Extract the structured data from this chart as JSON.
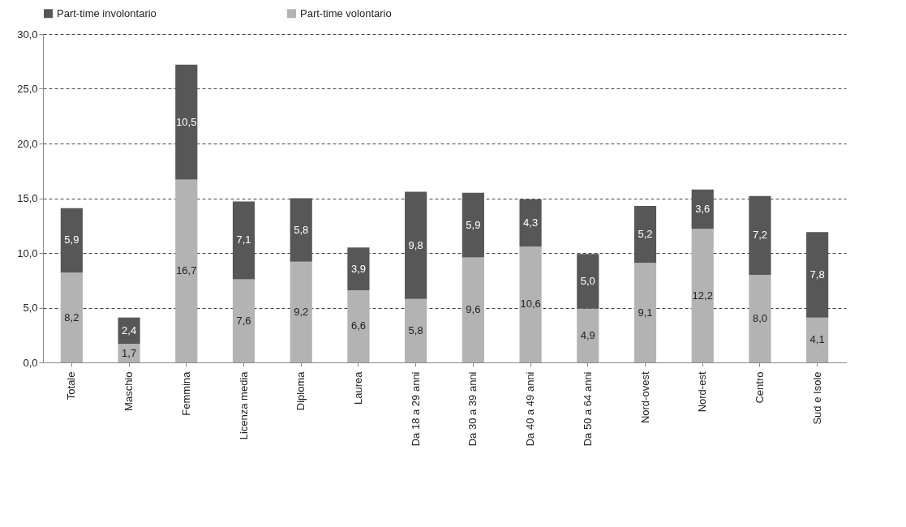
{
  "chart_data": {
    "type": "bar",
    "stacked": true,
    "categories": [
      "Totale",
      "Maschio",
      "Femmina",
      "Licenza media",
      "Diploma",
      "Laurea",
      "Da 18 a 29 anni",
      "Da 30 a 39 anni",
      "Da 40 a 49 anni",
      "Da 50 a 64 anni",
      "Nord-ovest",
      "Nord-est",
      "Centro",
      "Sud e Isole"
    ],
    "series": [
      {
        "name": "Part-time volontario",
        "color": "#b3b3b3",
        "values": [
          8.2,
          1.7,
          16.7,
          7.6,
          9.2,
          6.6,
          5.8,
          9.6,
          10.6,
          4.9,
          9.1,
          12.2,
          8.0,
          4.1
        ],
        "value_labels": [
          "8,2",
          "1,7",
          "16,7",
          "7,6",
          "9,2",
          "6,6",
          "5,8",
          "9,6",
          "10,6",
          "4,9",
          "9,1",
          "12,2",
          "8,0",
          "4,1"
        ]
      },
      {
        "name": "Part-time involontario",
        "color": "#575757",
        "values": [
          5.9,
          2.4,
          10.5,
          7.1,
          5.8,
          3.9,
          9.8,
          5.9,
          4.3,
          5.0,
          5.2,
          3.6,
          7.2,
          7.8
        ],
        "value_labels": [
          "5,9",
          "2,4",
          "10,5",
          "7,1",
          "5,8",
          "3,9",
          "9,8",
          "5,9",
          "4,3",
          "5,0",
          "5,2",
          "3,6",
          "7,2",
          "7,8"
        ]
      }
    ],
    "ylim": [
      0,
      30
    ],
    "yticks": [
      {
        "value": 0,
        "label": "0,0"
      },
      {
        "value": 5,
        "label": "5,0"
      },
      {
        "value": 10,
        "label": "10,0"
      },
      {
        "value": 15,
        "label": "15,0"
      },
      {
        "value": 20,
        "label": "20,0"
      },
      {
        "value": 25,
        "label": "25,0"
      },
      {
        "value": 30,
        "label": "30,0"
      }
    ],
    "grid": "y",
    "legend": "top"
  }
}
